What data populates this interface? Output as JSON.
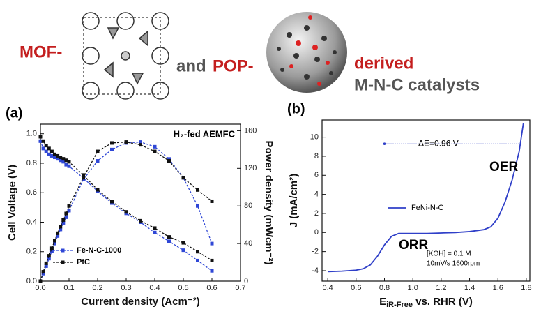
{
  "header": {
    "part1": "MOF-",
    "part2": "and",
    "part3": "POP-",
    "part4": "derived",
    "part5": "M-N-C catalysts"
  },
  "chart_data": [
    {
      "type": "line",
      "title": "(a)",
      "annotation": "H₂-fed AEMFC",
      "x_label": "Current density (Acm⁻²)",
      "y_label": "Cell Voltage (V)",
      "y2_label": "Power density (mWcm⁻²)",
      "x": [
        0,
        0.01,
        0.02,
        0.03,
        0.04,
        0.05,
        0.06,
        0.07,
        0.08,
        0.09,
        0.1,
        0.15,
        0.2,
        0.25,
        0.3,
        0.35,
        0.4,
        0.45,
        0.5,
        0.55,
        0.6
      ],
      "series": [
        {
          "name": "Fe-N-C-1000",
          "color": "#2f47d6",
          "values": [
            0.95,
            0.9,
            0.88,
            0.86,
            0.85,
            0.84,
            0.83,
            0.82,
            0.81,
            0.79,
            0.78,
            0.7,
            0.61,
            0.53,
            0.46,
            0.4,
            0.33,
            0.27,
            0.21,
            0.14,
            0.07
          ]
        },
        {
          "name": "PtC",
          "color": "#111111",
          "values": [
            0.98,
            0.95,
            0.92,
            0.9,
            0.88,
            0.86,
            0.85,
            0.84,
            0.83,
            0.82,
            0.81,
            0.72,
            0.62,
            0.54,
            0.47,
            0.41,
            0.36,
            0.3,
            0.26,
            0.2,
            0.14
          ]
        },
        {
          "name": "Fe-N-C-1000",
          "color": "#2f47d6",
          "axis": "y2",
          "values": [
            0,
            8,
            16,
            24,
            32,
            40,
            48,
            55,
            62,
            68,
            75,
            108,
            128,
            140,
            147,
            148,
            143,
            130,
            110,
            80,
            40
          ]
        },
        {
          "name": "PtC",
          "color": "#111111",
          "axis": "y2",
          "values": [
            0,
            10,
            19,
            27,
            35,
            43,
            51,
            58,
            65,
            72,
            80,
            110,
            138,
            147,
            148,
            145,
            138,
            128,
            110,
            97,
            85
          ]
        }
      ],
      "xlim": [
        0,
        0.7
      ],
      "xticks": [
        {
          "value": 0,
          "label": "0.0"
        },
        0.1,
        0.2,
        0.3,
        0.4,
        0.5,
        0.6,
        0.7
      ],
      "ylim": [
        0,
        1.065
      ],
      "yticks": [
        {
          "value": 0,
          "label": "0.0"
        },
        0.2,
        0.4,
        0.6,
        0.8,
        {
          "value": 1,
          "label": "1.0"
        }
      ],
      "y2lim": [
        0,
        167
      ],
      "y2ticks": [
        0,
        40,
        80,
        120,
        160
      ],
      "legend": "lower left"
    },
    {
      "type": "line",
      "title": "(b)",
      "x_label": [
        "E",
        "iR-Free",
        " vs. RHR (V)"
      ],
      "y_label": "J (mA/cm²)",
      "annotations": [
        "ΔE=0.96 V",
        "OER",
        "ORR",
        "[KOH] = 0.1 M",
        "10mV/s 1600rpm"
      ],
      "delta_line": {
        "x": [
          0.8,
          1.76
        ],
        "y": 9.3
      },
      "x": [
        0.4,
        0.5,
        0.6,
        0.65,
        0.7,
        0.75,
        0.8,
        0.85,
        0.9,
        1.0,
        1.1,
        1.2,
        1.3,
        1.4,
        1.5,
        1.55,
        1.6,
        1.65,
        1.7,
        1.75,
        1.78
      ],
      "series": [
        {
          "name": "FeNi-N-C",
          "color": "#2f3fc8",
          "values": [
            -4.1,
            -4.05,
            -3.95,
            -3.8,
            -3.4,
            -2.5,
            -1.3,
            -0.4,
            -0.1,
            -0.1,
            -0.1,
            -0.05,
            0,
            0.1,
            0.3,
            0.6,
            1.5,
            3.2,
            5.5,
            8.5,
            11.5
          ]
        }
      ],
      "xlim": [
        0.36,
        1.825
      ],
      "xticks": [
        0.4,
        0.6,
        0.8,
        {
          "value": 1,
          "label": "1.0"
        },
        1.2,
        1.4,
        1.6,
        1.8
      ],
      "ylim": [
        -5.1,
        11.8
      ],
      "yticks": [
        -4,
        -2,
        0,
        2,
        4,
        6,
        8,
        10
      ],
      "legend": "center"
    }
  ]
}
